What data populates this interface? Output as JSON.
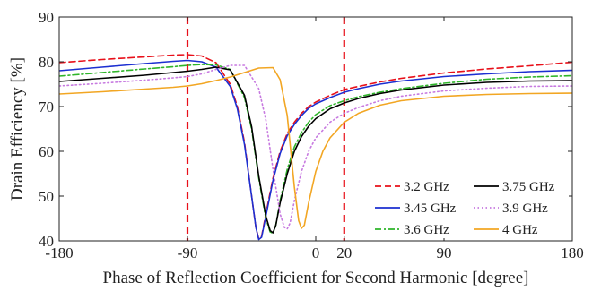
{
  "chart_data": {
    "type": "line",
    "title": "",
    "xlabel": "Phase of Reflection Coefficient for Second Harmonic [degree]",
    "ylabel": "Drain Efficiency [%]",
    "xlim": [
      -180,
      180
    ],
    "ylim": [
      40,
      90
    ],
    "xticks": [
      -180,
      -90,
      0,
      20,
      90,
      180
    ],
    "xtick_labels": [
      "-180",
      "-90",
      "0",
      "20",
      "90",
      "180"
    ],
    "yticks": [
      40,
      50,
      60,
      70,
      80,
      90
    ],
    "ytick_labels": [
      "40",
      "50",
      "60",
      "70",
      "80",
      "90"
    ],
    "grid": false,
    "legend_placement": "bottom-right",
    "markers": [
      {
        "x": -90,
        "color": "#e8101a",
        "style": "dashed"
      },
      {
        "x": 20,
        "color": "#e8101a",
        "style": "dashed"
      }
    ],
    "series": [
      {
        "name": "3.2 GHz",
        "color": "#e8101a",
        "style": "dashed",
        "x": [
          -180,
          -150,
          -120,
          -100,
          -90,
          -80,
          -70,
          -60,
          -55,
          -50,
          -45,
          -42,
          -40,
          -38,
          -35,
          -30,
          -25,
          -20,
          -15,
          -10,
          -5,
          0,
          10,
          20,
          30,
          45,
          60,
          90,
          120,
          150,
          180
        ],
        "y": [
          79.8,
          80.5,
          81.1,
          81.5,
          81.6,
          81.3,
          79.8,
          75,
          70,
          62,
          50,
          43,
          40.5,
          41,
          46,
          54,
          60,
          64,
          66.5,
          68.5,
          70,
          71,
          72.5,
          73.8,
          74.5,
          75.5,
          76.3,
          77.5,
          78.4,
          79.1,
          79.9
        ]
      },
      {
        "name": "3.45 GHz",
        "color": "#1c2fd1",
        "style": "solid",
        "x": [
          -180,
          -150,
          -120,
          -100,
          -90,
          -80,
          -70,
          -60,
          -55,
          -50,
          -45,
          -42,
          -40,
          -38,
          -35,
          -30,
          -25,
          -20,
          -15,
          -10,
          -5,
          0,
          10,
          20,
          30,
          45,
          60,
          90,
          120,
          150,
          180
        ],
        "y": [
          78,
          78.8,
          79.6,
          80.1,
          80.3,
          80,
          78.8,
          74.5,
          69.5,
          61.5,
          50,
          43,
          40.3,
          40.8,
          45.5,
          53.5,
          59.5,
          63.5,
          66,
          68,
          69.6,
          70.6,
          72,
          73.2,
          74,
          75,
          75.7,
          76.7,
          77.3,
          77.8,
          78.1
        ]
      },
      {
        "name": "3.6 GHz",
        "color": "#2fb52a",
        "style": "dashdot",
        "x": [
          -180,
          -150,
          -120,
          -100,
          -90,
          -80,
          -70,
          -60,
          -50,
          -45,
          -40,
          -35,
          -32,
          -30,
          -28,
          -25,
          -20,
          -15,
          -10,
          -5,
          0,
          10,
          20,
          30,
          45,
          60,
          90,
          120,
          150,
          180
        ],
        "y": [
          76.8,
          77.6,
          78.4,
          78.9,
          79.2,
          79.4,
          79.3,
          78.3,
          72,
          65,
          54,
          45,
          42,
          41.7,
          43.5,
          49,
          56,
          61,
          64.2,
          66.5,
          68.2,
          70.2,
          71.3,
          72.2,
          73.2,
          74,
          75.2,
          76.1,
          76.6,
          76.9
        ]
      },
      {
        "name": "3.75 GHz",
        "color": "#000000",
        "style": "solid",
        "x": [
          -180,
          -150,
          -120,
          -100,
          -90,
          -80,
          -70,
          -60,
          -50,
          -45,
          -40,
          -35,
          -32,
          -30,
          -28,
          -25,
          -20,
          -15,
          -10,
          -5,
          0,
          10,
          20,
          30,
          45,
          60,
          90,
          120,
          150,
          180
        ],
        "y": [
          75.6,
          76.3,
          77,
          77.6,
          77.9,
          78.3,
          78.8,
          78.2,
          72.5,
          65.5,
          54.5,
          45.5,
          42.3,
          41.8,
          43.5,
          48.5,
          55,
          60,
          63.3,
          65.6,
          67.3,
          69.5,
          70.8,
          71.8,
          72.9,
          73.7,
          74.8,
          75.4,
          75.7,
          75.8
        ]
      },
      {
        "name": "3.9 GHz",
        "color": "#c77ae0",
        "style": "dotted",
        "x": [
          -180,
          -150,
          -120,
          -100,
          -90,
          -80,
          -70,
          -60,
          -50,
          -40,
          -35,
          -30,
          -25,
          -22,
          -20,
          -18,
          -15,
          -10,
          -5,
          0,
          10,
          20,
          30,
          45,
          60,
          90,
          120,
          150,
          180
        ],
        "y": [
          74.6,
          75.2,
          75.9,
          76.4,
          76.7,
          77.3,
          78.3,
          79.2,
          79.2,
          74,
          67,
          56,
          46,
          43,
          42.7,
          44,
          49,
          55.5,
          60,
          63,
          66.5,
          68.5,
          69.8,
          71.3,
          72.3,
          73.5,
          74.1,
          74.5,
          74.6
        ]
      },
      {
        "name": "4      GHz",
        "color": "#f2a623",
        "style": "solid",
        "x": [
          -180,
          -150,
          -120,
          -100,
          -90,
          -80,
          -70,
          -60,
          -50,
          -40,
          -30,
          -25,
          -20,
          -15,
          -12,
          -10,
          -8,
          -5,
          0,
          5,
          10,
          20,
          30,
          45,
          60,
          90,
          120,
          150,
          180
        ],
        "y": [
          72.8,
          73.3,
          73.9,
          74.3,
          74.6,
          75.1,
          75.8,
          76.6,
          77.6,
          78.6,
          78.7,
          76,
          68,
          52,
          44.5,
          42.8,
          43.5,
          48.5,
          55.5,
          60,
          63,
          66.5,
          68.5,
          70.3,
          71.3,
          72.3,
          72.7,
          72.9,
          73
        ]
      }
    ]
  }
}
